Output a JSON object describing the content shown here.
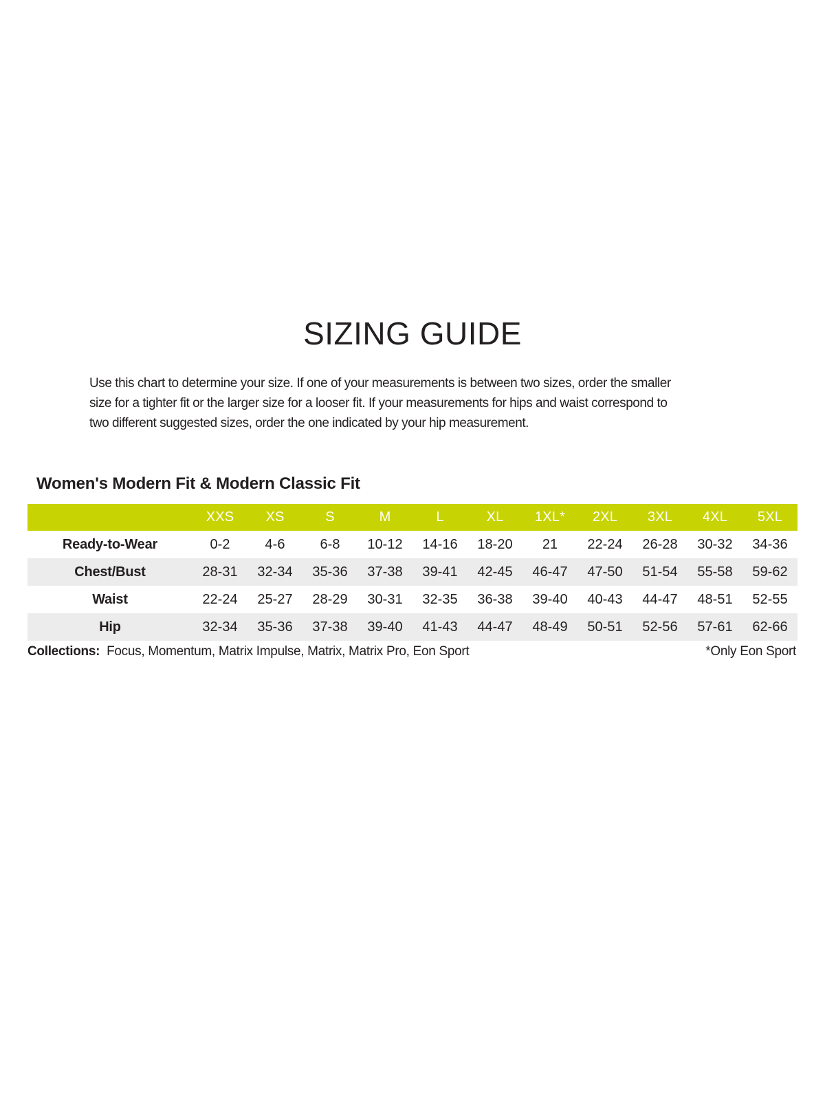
{
  "page": {
    "title": "SIZING GUIDE",
    "intro": "Use this chart to determine your size. If one of your measurements is between two sizes, order the smaller\nsize for a tighter fit or the larger size for a looser fit. If your measurements for hips and waist correspond to\ntwo different suggested sizes, order the one indicated by your hip measurement."
  },
  "section": {
    "heading": "Women's Modern Fit & Modern Classic Fit"
  },
  "table": {
    "columns": [
      "XXS",
      "XS",
      "S",
      "M",
      "L",
      "XL",
      "1XL*",
      "2XL",
      "3XL",
      "4XL",
      "5XL"
    ],
    "rows": [
      {
        "label": "Ready-to-Wear",
        "values": [
          "0-2",
          "4-6",
          "6-8",
          "10-12",
          "14-16",
          "18-20",
          "21",
          "22-24",
          "26-28",
          "30-32",
          "34-36"
        ]
      },
      {
        "label": "Chest/Bust",
        "values": [
          "28-31",
          "32-34",
          "35-36",
          "37-38",
          "39-41",
          "42-45",
          "46-47",
          "47-50",
          "51-54",
          "55-58",
          "59-62"
        ]
      },
      {
        "label": "Waist",
        "values": [
          "22-24",
          "25-27",
          "28-29",
          "30-31",
          "32-35",
          "36-38",
          "39-40",
          "40-43",
          "44-47",
          "48-51",
          "52-55"
        ]
      },
      {
        "label": "Hip",
        "values": [
          "32-34",
          "35-36",
          "37-38",
          "39-40",
          "41-43",
          "44-47",
          "48-49",
          "50-51",
          "52-56",
          "57-61",
          "62-66"
        ]
      }
    ]
  },
  "footer": {
    "collections_label": "Collections:",
    "collections_list": "Focus, Momentum, Matrix Impulse, Matrix, Matrix Pro, Eon Sport",
    "footnote": "*Only Eon Sport"
  },
  "colors": {
    "header_bg": "#c7d303",
    "header_text": "#ffffff",
    "row_alt_bg": "#ececed",
    "text": "#231f20"
  }
}
